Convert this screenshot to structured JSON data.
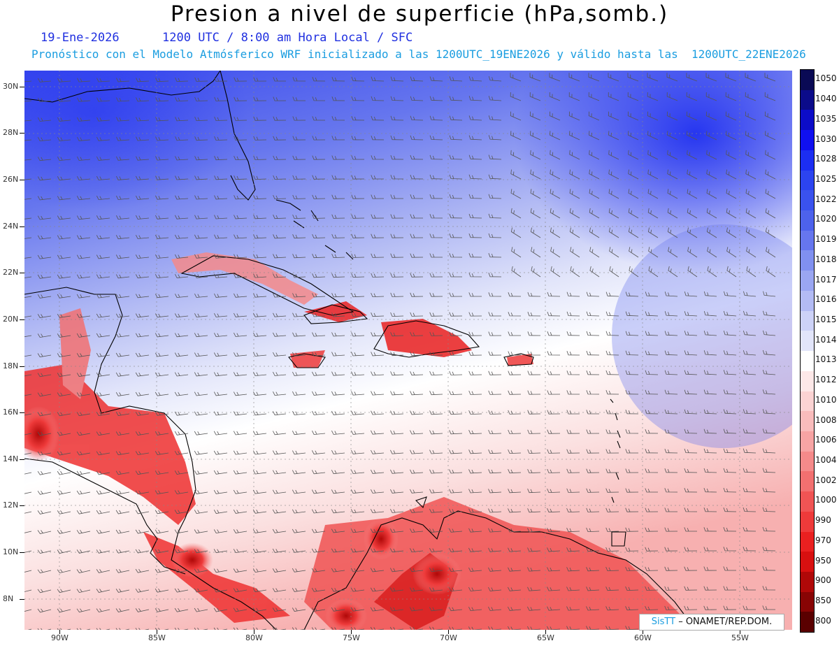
{
  "title": "Presion a nivel de superficie (hPa,somb.)",
  "subtitle_line1": {
    "date": "19-Ene-2026",
    "time": "1200 UTC / 8:00 am Hora Local / SFC"
  },
  "subtitle_line2": "Pronóstico con el Modelo Atmósferico WRF inicializado a las 1200UTC_19ENE2026 y válido hasta las  1200UTC_22ENE2026",
  "lat_labels": [
    "30N",
    "28N",
    "26N",
    "24N",
    "22N",
    "20N",
    "18N",
    "16N",
    "14N",
    "12N",
    "10N",
    "8N"
  ],
  "lon_labels": [
    "90W",
    "85W",
    "80W",
    "75W",
    "70W",
    "65W",
    "60W",
    "55W"
  ],
  "colorbar": {
    "levels": [
      "1050",
      "1040",
      "1035",
      "1030",
      "1028",
      "1025",
      "1022",
      "1020",
      "1019",
      "1018",
      "1017",
      "1016",
      "1015",
      "1014",
      "1013",
      "1012",
      "1010",
      "1008",
      "1006",
      "1004",
      "1002",
      "1000",
      "990",
      "970",
      "950",
      "900",
      "850",
      "800"
    ],
    "colors": [
      "#0a0a55",
      "#0b0b8a",
      "#0c0cc8",
      "#1010f0",
      "#1c2ef2",
      "#2c44f0",
      "#3a52ee",
      "#4d62ec",
      "#6676ee",
      "#8090f0",
      "#9aa6f2",
      "#b3bbf4",
      "#cdd2f7",
      "#e2e5fa",
      "#ffffff",
      "#fde8e8",
      "#fbd3d3",
      "#f9bcbc",
      "#f7a4a4",
      "#f58a8a",
      "#f27070",
      "#f05454",
      "#ee3a3a",
      "#ea2020",
      "#d81010",
      "#b00808",
      "#880404",
      "#5a0000"
    ]
  },
  "credit": {
    "brand": "SisTT",
    "org": " – ONAMET/REP.DOM."
  }
}
